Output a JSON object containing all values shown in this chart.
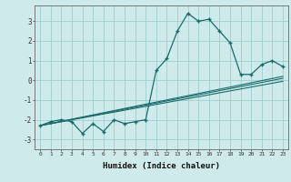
{
  "xlabel": "Humidex (Indice chaleur)",
  "x_values": [
    0,
    1,
    2,
    3,
    4,
    5,
    6,
    7,
    8,
    9,
    10,
    11,
    12,
    13,
    14,
    15,
    16,
    17,
    18,
    19,
    20,
    21,
    22,
    23
  ],
  "main_line": [
    -2.3,
    -2.1,
    -2.0,
    -2.1,
    -2.7,
    -2.2,
    -2.6,
    -2.0,
    -2.2,
    -2.1,
    -2.0,
    0.5,
    1.1,
    2.5,
    3.4,
    3.0,
    3.1,
    2.5,
    1.9,
    0.3,
    0.3,
    0.8,
    1.0,
    0.7
  ],
  "trend1": [
    -2.3,
    0.2
  ],
  "trend2": [
    -2.3,
    0.1
  ],
  "trend3": [
    -2.3,
    -0.05
  ],
  "trend1_x": [
    0,
    23
  ],
  "trend2_x": [
    0,
    23
  ],
  "trend3_x": [
    0,
    23
  ],
  "line_color": "#1a6b6b",
  "bg_color": "#ceeaea",
  "grid_color": "#9dcfcf",
  "ylim": [
    -3.5,
    3.8
  ],
  "xlim": [
    -0.5,
    23.5
  ]
}
